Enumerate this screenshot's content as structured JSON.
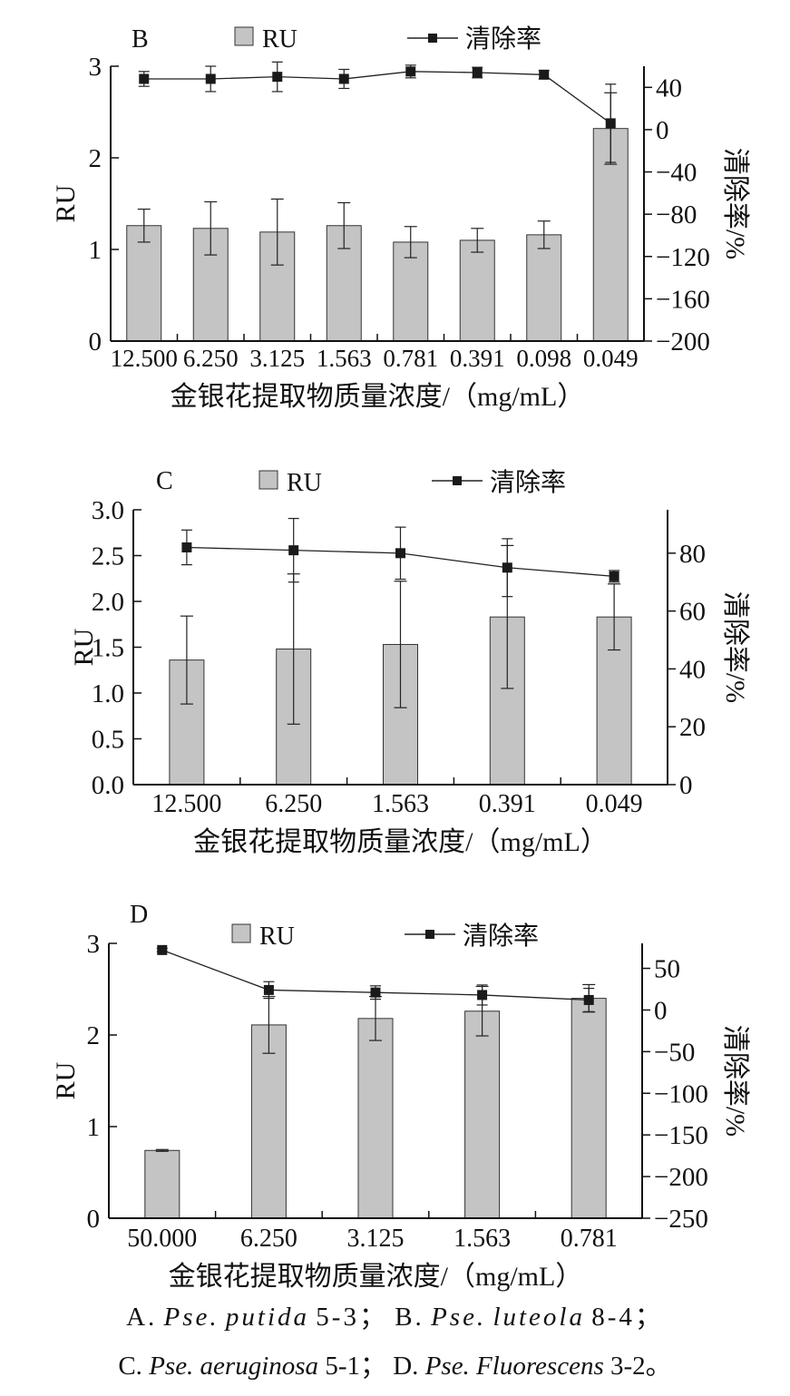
{
  "chart_data": [
    {
      "panel_label": "B",
      "type": "bar",
      "categories": [
        "12.500",
        "6.250",
        "3.125",
        "1.563",
        "0.781",
        "0.391",
        "0.098",
        "0.049"
      ],
      "series": [
        {
          "name": "RU",
          "type": "bar",
          "axis": "left",
          "values": [
            1.26,
            1.23,
            1.19,
            1.26,
            1.08,
            1.1,
            1.16,
            2.32
          ],
          "errors": [
            0.18,
            0.29,
            0.36,
            0.25,
            0.17,
            0.13,
            0.15,
            0.39
          ]
        },
        {
          "name": "清除率",
          "type": "line",
          "axis": "right",
          "values": [
            48,
            48,
            50,
            48,
            55,
            54,
            52,
            6
          ],
          "errors": [
            7,
            12,
            14,
            9,
            6,
            5,
            4,
            37
          ]
        }
      ],
      "xlabel": "金银花提取物质量浓度/（mg/mL）",
      "ylabel": "RU",
      "y2label": "清除率/%",
      "ylim": [
        0,
        3
      ],
      "yticks": [
        0,
        1,
        2,
        3
      ],
      "ytick_labels": [
        "0",
        "1",
        "2",
        "3"
      ],
      "y2lim": [
        -200,
        60
      ],
      "y2ticks": [
        40,
        0,
        -40,
        -80,
        -120,
        -160,
        -200
      ],
      "y2tick_labels": [
        "40",
        "0",
        "−40",
        "−80",
        "−120",
        "−160",
        "−200"
      ],
      "legend": "top",
      "grid": false
    },
    {
      "panel_label": "C",
      "type": "bar",
      "categories": [
        "12.500",
        "6.250",
        "1.563",
        "0.391",
        "0.049"
      ],
      "series": [
        {
          "name": "RU",
          "type": "bar",
          "axis": "left",
          "values": [
            1.36,
            1.48,
            1.53,
            1.83,
            1.83
          ],
          "errors": [
            0.48,
            0.82,
            0.69,
            0.78,
            0.36
          ]
        },
        {
          "name": "清除率",
          "type": "line",
          "axis": "right",
          "values": [
            82,
            81,
            80,
            75,
            72
          ],
          "errors": [
            6,
            11,
            9,
            10,
            2
          ]
        }
      ],
      "xlabel": "金银花提取物质量浓度/（mg/mL）",
      "ylabel": "RU",
      "y2label": "清除率/%",
      "ylim": [
        0,
        3
      ],
      "yticks": [
        0,
        0.5,
        1,
        1.5,
        2,
        2.5,
        3
      ],
      "ytick_labels": [
        "0.0",
        "0.5",
        "1.0",
        "1.5",
        "2.0",
        "2.5",
        "3.0"
      ],
      "y2lim": [
        0,
        95
      ],
      "y2ticks": [
        0,
        20,
        40,
        60,
        80
      ],
      "y2tick_labels": [
        "0",
        "20",
        "40",
        "60",
        "80"
      ],
      "legend": "top",
      "grid": false
    },
    {
      "panel_label": "D",
      "type": "bar",
      "categories": [
        "50.000",
        "6.250",
        "3.125",
        "1.563",
        "0.781"
      ],
      "series": [
        {
          "name": "RU",
          "type": "bar",
          "axis": "left",
          "values": [
            0.74,
            2.11,
            2.18,
            2.26,
            2.4
          ],
          "errors": [
            0.01,
            0.31,
            0.24,
            0.27,
            0.15
          ]
        },
        {
          "name": "清除率",
          "type": "line",
          "axis": "right",
          "values": [
            72,
            24,
            21,
            18,
            12
          ],
          "errors": [
            2,
            10,
            8,
            12,
            14
          ]
        }
      ],
      "xlabel": "金银花提取物质量浓度/（mg/mL）",
      "ylabel": "RU",
      "y2label": "清除率/%",
      "ylim": [
        0,
        3
      ],
      "yticks": [
        0,
        1,
        2,
        3
      ],
      "ytick_labels": [
        "0",
        "1",
        "2",
        "3"
      ],
      "y2lim": [
        -250,
        80
      ],
      "y2ticks": [
        50,
        0,
        -50,
        -100,
        -150,
        -200,
        -250
      ],
      "y2tick_labels": [
        "50",
        "0",
        "−50",
        "−100",
        "−150",
        "−200",
        "−250"
      ],
      "legend": "top",
      "grid": false
    }
  ],
  "caption": {
    "line1": {
      "a_label": "A.",
      "a_genus": "Pse.",
      "a_species": "putida",
      "a_strain": "5-3；",
      "b_label": "B.",
      "b_genus": "Pse.",
      "b_species": "luteola",
      "b_strain": "8-4；"
    },
    "line2": {
      "c_label": "C.",
      "c_taxon": "Pse. aeruginosa",
      "c_strain": "5-1；",
      "d_label": "D.",
      "d_taxon": "Pse. Fluorescens",
      "d_strain": "3-2。"
    }
  },
  "colors": {
    "bar_fill": "#c4c4c4",
    "bar_stroke": "#333333",
    "axis": "#111111",
    "marker": "#1a1a1a"
  }
}
